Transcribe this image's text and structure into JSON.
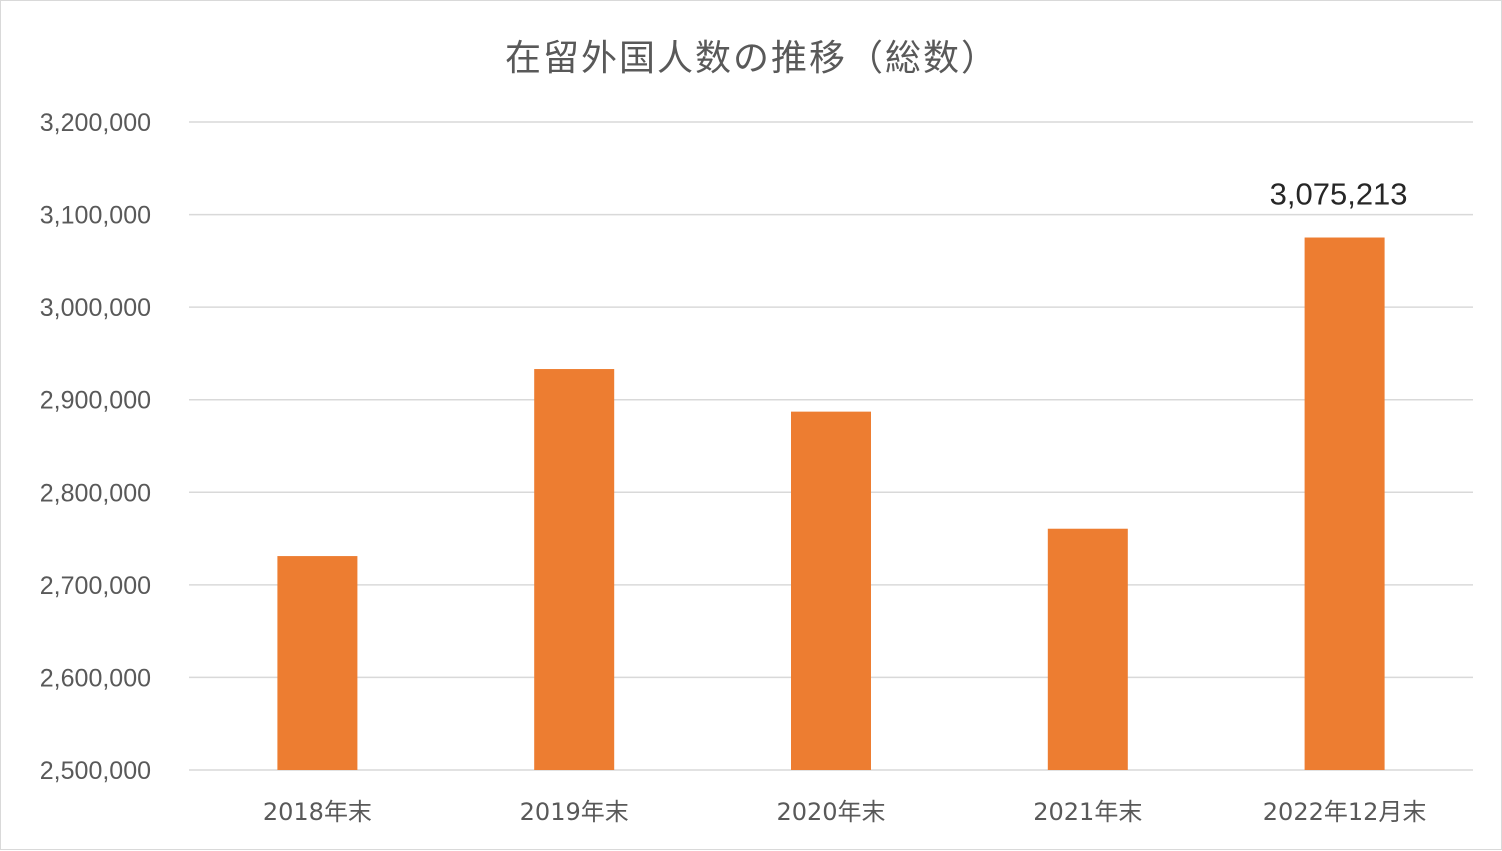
{
  "chart_data": {
    "type": "bar",
    "title": "在留外国人数の推移（総数）",
    "xlabel": "",
    "ylabel": "",
    "categories": [
      "2018年末",
      "2019年末",
      "2020年末",
      "2021年末",
      "2022年12月末"
    ],
    "values": [
      2731093,
      2933137,
      2887116,
      2760635,
      3075213
    ],
    "data_labels": [
      "",
      "",
      "",
      "",
      "3,075,213"
    ],
    "ylim": [
      2500000,
      3200000
    ],
    "yticks": [
      "2,500,000",
      "2,600,000",
      "2,700,000",
      "2,800,000",
      "2,900,000",
      "3,000,000",
      "3,100,000",
      "3,200,000"
    ],
    "ytick_values": [
      2500000,
      2600000,
      2700000,
      2800000,
      2900000,
      3000000,
      3100000,
      3200000
    ],
    "grid": true,
    "legend": "none",
    "colors": {
      "bar": "#ed7d31",
      "grid": "#d9d9d9",
      "text": "#595959",
      "data_label": "#262626"
    }
  }
}
